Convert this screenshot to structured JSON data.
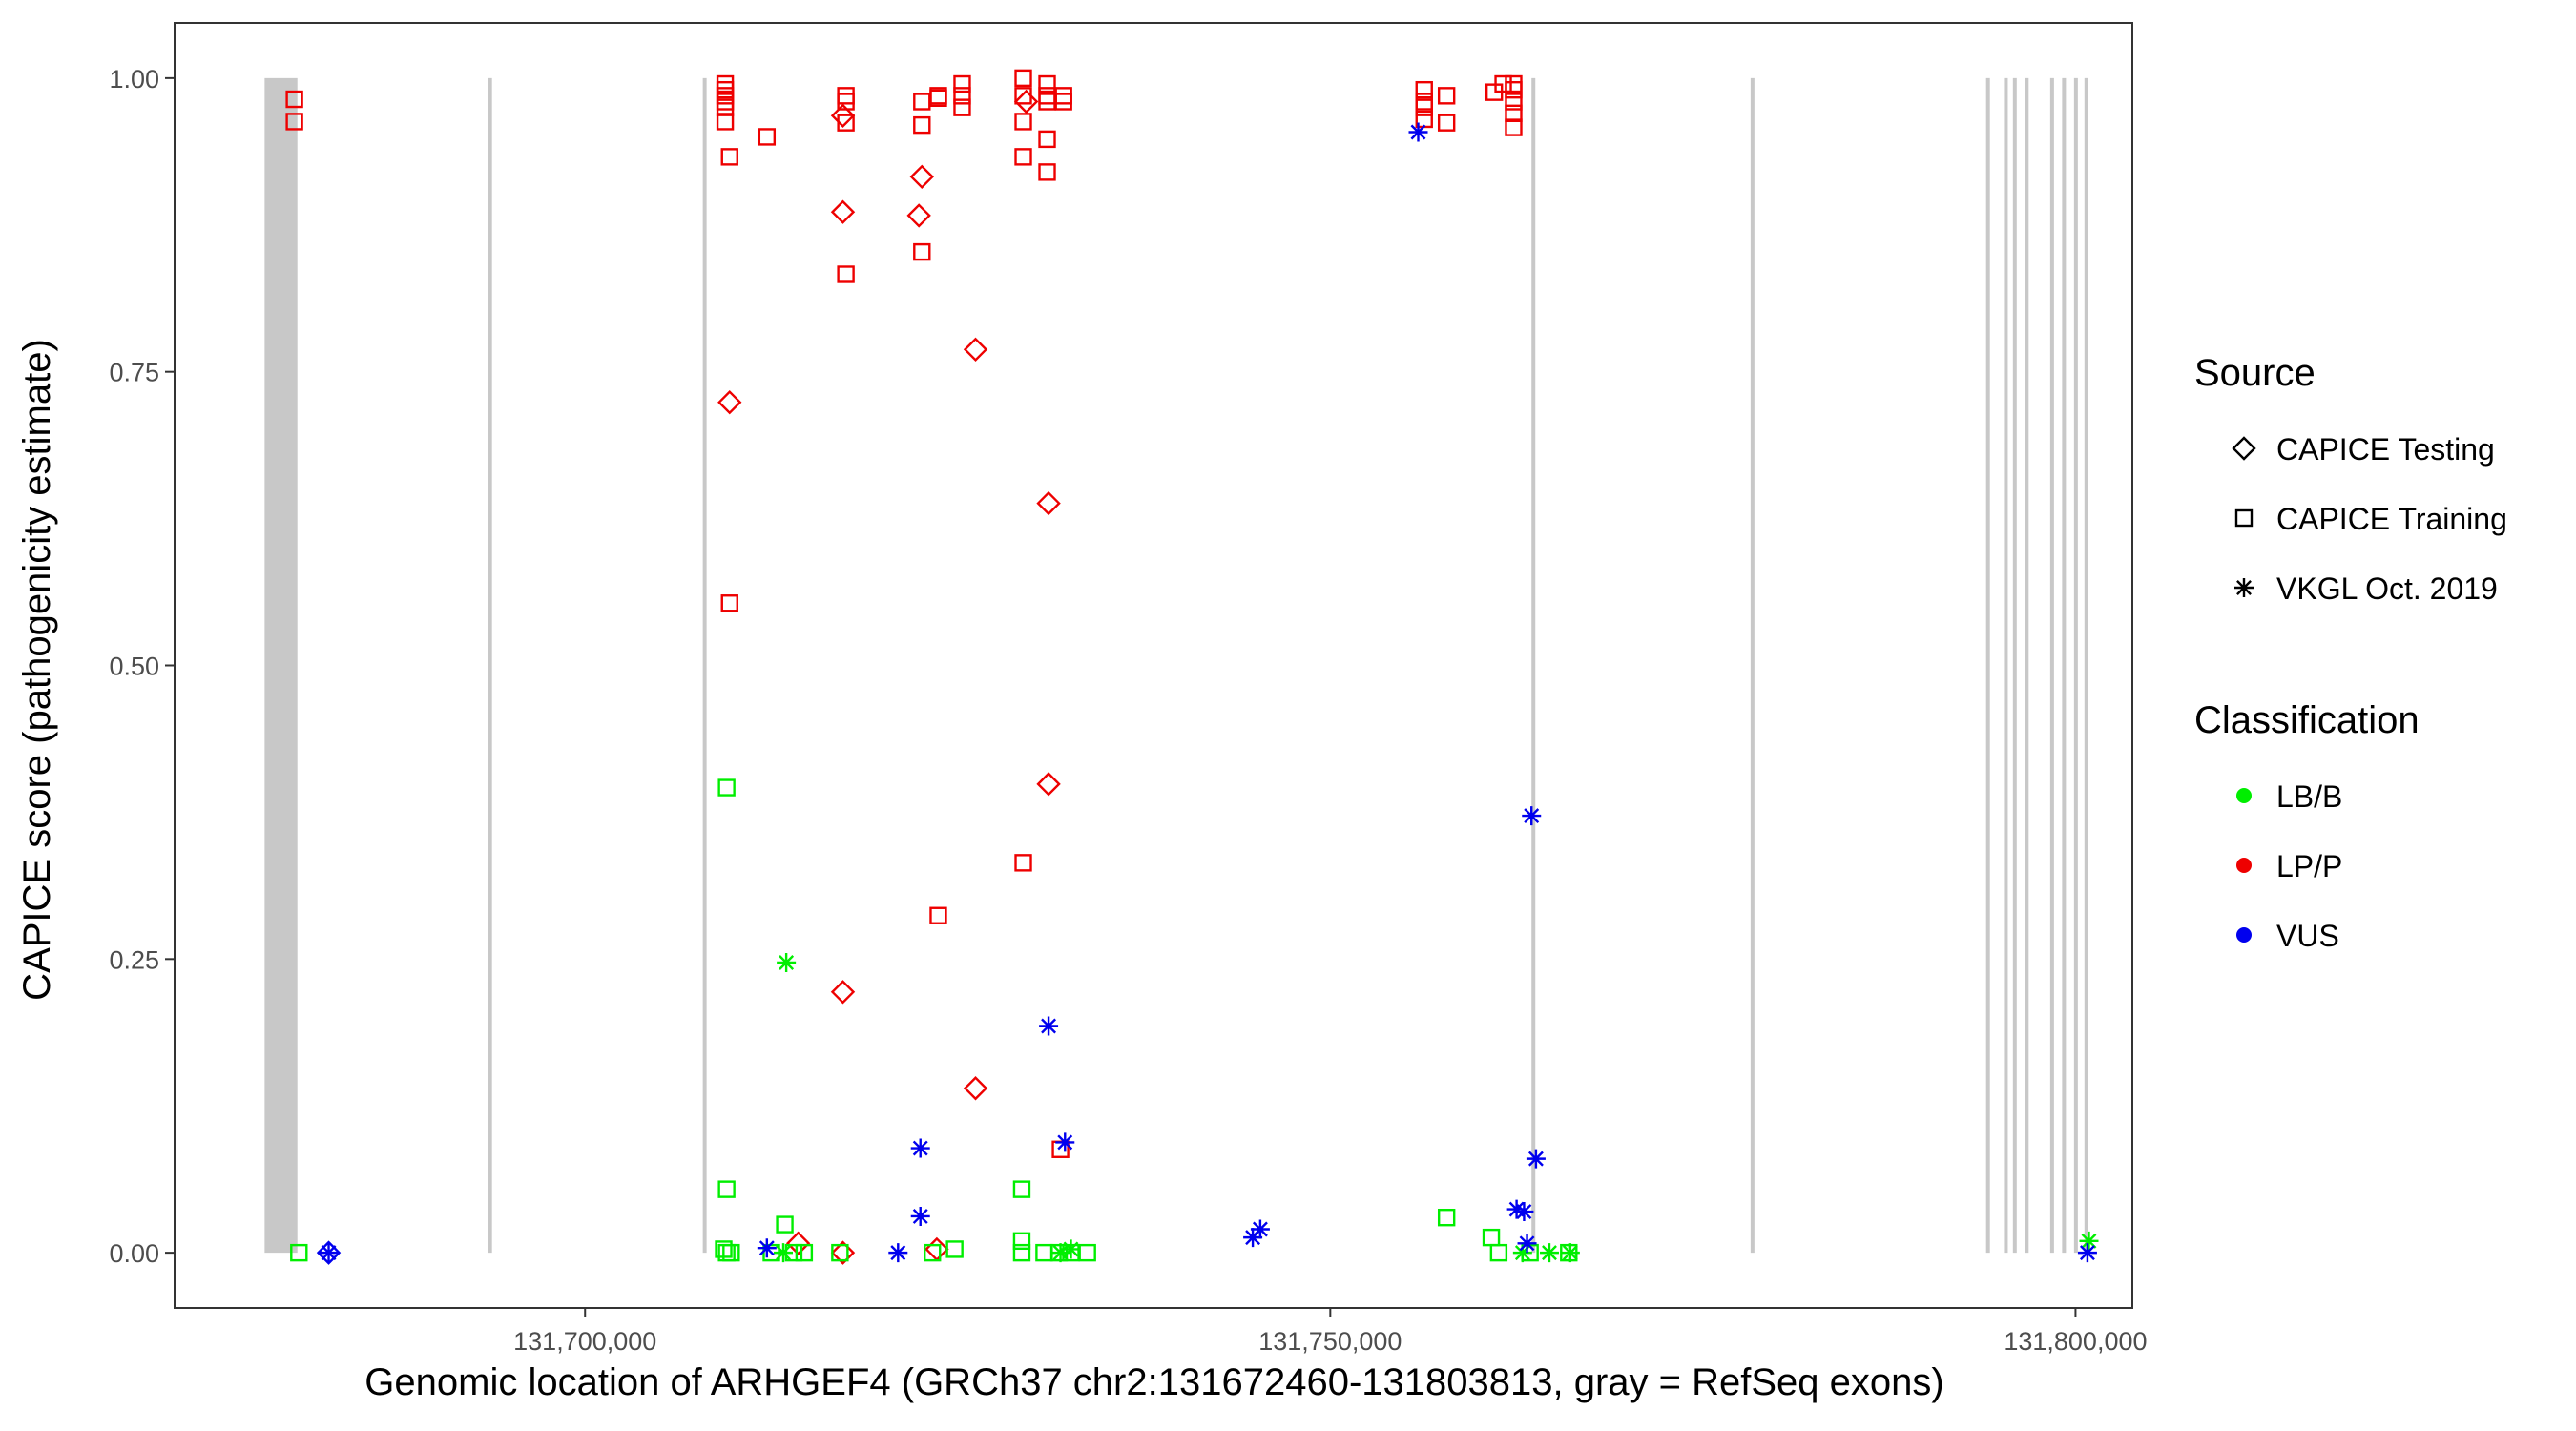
{
  "chart_data": {
    "type": "scatter",
    "xlabel": "Genomic location of ARHGEF4 (GRCh37 chr2:131672460-131803813, gray = RefSeq exons)",
    "ylabel": "CAPICE score (pathogenicity estimate)",
    "xlim": [
      131672460,
      131803813
    ],
    "ylim": [
      -0.047,
      1.047
    ],
    "x_ticks": [
      131700000,
      131750000,
      131800000
    ],
    "x_tick_labels": [
      "131,700,000",
      "131,750,000",
      "131,800,000"
    ],
    "y_ticks": [
      0,
      0.25,
      0.5,
      0.75,
      1
    ],
    "y_tick_labels": [
      "0.00",
      "0.25",
      "0.50",
      "0.75",
      "1.00"
    ],
    "grid": false,
    "exons": [
      [
        131678500,
        131680700
      ],
      [
        131693500,
        131693700
      ],
      [
        131707900,
        131708100
      ],
      [
        131763500,
        131763700
      ],
      [
        131778200,
        131778400
      ],
      [
        131794000,
        131794200
      ],
      [
        131795200,
        131795400
      ],
      [
        131795800,
        131796000
      ],
      [
        131796600,
        131796800
      ],
      [
        131798300,
        131798500
      ],
      [
        131799100,
        131799300
      ],
      [
        131799900,
        131800100
      ],
      [
        131800600,
        131800800
      ]
    ],
    "legend": {
      "source": {
        "title": "Source",
        "entries": [
          {
            "key": "testing",
            "label": "CAPICE Testing",
            "shape": "diamond"
          },
          {
            "key": "training",
            "label": "CAPICE Training",
            "shape": "square"
          },
          {
            "key": "vkgl",
            "label": "VKGL Oct. 2019",
            "shape": "asterisk"
          }
        ]
      },
      "classification": {
        "title": "Classification",
        "entries": [
          {
            "key": "LB/B",
            "label": "LB/B",
            "color": "#00ee00"
          },
          {
            "key": "LP/P",
            "label": "LP/P",
            "color": "#ee0000"
          },
          {
            "key": "VUS",
            "label": "VUS",
            "color": "#0000ee"
          }
        ]
      }
    },
    "series": [
      {
        "name": "CAPICE Training / LP/P",
        "source": "training",
        "class": "LP/P",
        "points": [
          [
            131680500,
            0.982
          ],
          [
            131680500,
            0.963
          ],
          [
            131709400,
            0.995
          ],
          [
            131709400,
            0.99
          ],
          [
            131709400,
            0.985
          ],
          [
            131709400,
            0.98
          ],
          [
            131709400,
            0.975
          ],
          [
            131709400,
            0.963
          ],
          [
            131709700,
            0.933
          ],
          [
            131712200,
            0.95
          ],
          [
            131709700,
            0.553
          ],
          [
            131717500,
            0.985
          ],
          [
            131717500,
            0.98
          ],
          [
            131717500,
            0.962
          ],
          [
            131717500,
            0.833
          ],
          [
            131722600,
            0.98
          ],
          [
            131722600,
            0.96
          ],
          [
            131722600,
            0.852
          ],
          [
            131723700,
            0.985
          ],
          [
            131723700,
            0.983
          ],
          [
            131725300,
            0.995
          ],
          [
            131725300,
            0.985
          ],
          [
            131725300,
            0.975
          ],
          [
            131723700,
            0.287
          ],
          [
            131729400,
            1.0
          ],
          [
            131729400,
            0.985
          ],
          [
            131729400,
            0.963
          ],
          [
            131729400,
            0.933
          ],
          [
            131729400,
            0.332
          ],
          [
            131731000,
            0.995
          ],
          [
            131731000,
            0.985
          ],
          [
            131731000,
            0.98
          ],
          [
            131731000,
            0.948
          ],
          [
            131731000,
            0.92
          ],
          [
            131732100,
            0.985
          ],
          [
            131732100,
            0.98
          ],
          [
            131731900,
            0.088
          ],
          [
            131756300,
            0.99
          ],
          [
            131756300,
            0.98
          ],
          [
            131756300,
            0.975
          ],
          [
            131756300,
            0.965
          ],
          [
            131757800,
            0.985
          ],
          [
            131757800,
            0.962
          ],
          [
            131761000,
            0.988
          ],
          [
            131761600,
            0.995
          ],
          [
            131762300,
            0.995
          ],
          [
            131762300,
            0.99
          ],
          [
            131762300,
            0.98
          ],
          [
            131762300,
            0.97
          ],
          [
            131762300,
            0.958
          ]
        ]
      },
      {
        "name": "CAPICE Testing / LP/P",
        "source": "testing",
        "class": "LP/P",
        "points": [
          [
            131709700,
            0.724
          ],
          [
            131717300,
            0.968
          ],
          [
            131717300,
            0.886
          ],
          [
            131717300,
            0.222
          ],
          [
            131717300,
            0.0
          ],
          [
            131722600,
            0.916
          ],
          [
            131722400,
            0.883
          ],
          [
            131726200,
            0.769
          ],
          [
            131726200,
            0.14
          ],
          [
            131729600,
            0.98
          ],
          [
            131731100,
            0.638
          ],
          [
            131731100,
            0.399
          ],
          [
            131723600,
            0.003
          ],
          [
            131714300,
            0.008
          ]
        ]
      },
      {
        "name": "CAPICE Training / LB/B",
        "source": "training",
        "class": "LB/B",
        "points": [
          [
            131680800,
            0.0
          ],
          [
            131709500,
            0.396
          ],
          [
            131709500,
            0.054
          ],
          [
            131709300,
            0.003
          ],
          [
            131709500,
            0.0
          ],
          [
            131709800,
            0.0
          ],
          [
            131712500,
            0.0
          ],
          [
            131713400,
            0.024
          ],
          [
            131714000,
            0.0
          ],
          [
            131714700,
            0.0
          ],
          [
            131717100,
            0.0
          ],
          [
            131723300,
            0.0
          ],
          [
            131724800,
            0.003
          ],
          [
            131729300,
            0.054
          ],
          [
            131729300,
            0.01
          ],
          [
            131729300,
            0.0
          ],
          [
            131730800,
            0.0
          ],
          [
            131731800,
            0.0
          ],
          [
            131732600,
            0.0
          ],
          [
            131733700,
            0.0
          ],
          [
            131757800,
            0.03
          ],
          [
            131760800,
            0.013
          ],
          [
            131761300,
            0.0
          ],
          [
            131763400,
            0.0
          ],
          [
            131766000,
            0.0
          ]
        ]
      },
      {
        "name": "VKGL / LB/B",
        "source": "vkgl",
        "class": "LB/B",
        "points": [
          [
            131713500,
            0.247
          ],
          [
            131713300,
            0.0
          ],
          [
            131731900,
            0.0
          ],
          [
            131732600,
            0.003
          ],
          [
            131764700,
            0.0
          ],
          [
            131766100,
            0.0
          ],
          [
            131800900,
            0.01
          ],
          [
            131762900,
            0.0
          ]
        ]
      },
      {
        "name": "VKGL / VUS",
        "source": "vkgl",
        "class": "VUS",
        "points": [
          [
            131682800,
            0.0
          ],
          [
            131712200,
            0.004
          ],
          [
            131721000,
            0.0
          ],
          [
            131722500,
            0.089
          ],
          [
            131722500,
            0.031
          ],
          [
            131731100,
            0.193
          ],
          [
            131732200,
            0.094
          ],
          [
            131744800,
            0.013
          ],
          [
            131745300,
            0.02
          ],
          [
            131755900,
            0.954
          ],
          [
            131762500,
            0.037
          ],
          [
            131763000,
            0.035
          ],
          [
            131763200,
            0.008
          ],
          [
            131763500,
            0.372
          ],
          [
            131763800,
            0.08
          ],
          [
            131800800,
            0.0
          ]
        ]
      },
      {
        "name": "CAPICE Testing / VUS",
        "source": "testing",
        "class": "VUS",
        "points": [
          [
            131682800,
            0.0
          ]
        ]
      }
    ]
  }
}
